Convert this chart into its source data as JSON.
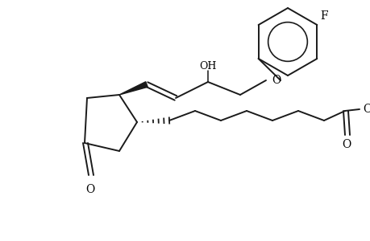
{
  "background_color": "#ffffff",
  "line_color": "#1a1a1a",
  "line_width": 1.4,
  "text_color": "#000000",
  "figsize": [
    4.6,
    3.0
  ],
  "dpi": 100,
  "xlim": [
    0,
    460
  ],
  "ylim": [
    0,
    300
  ]
}
